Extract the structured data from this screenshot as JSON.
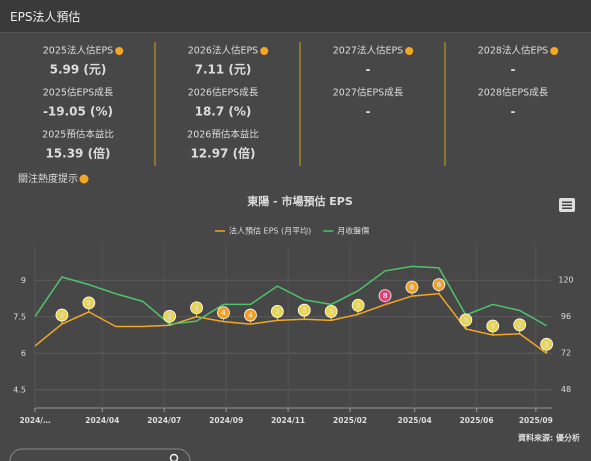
{
  "header": {
    "title": "EPS法人預估"
  },
  "stats": [
    {
      "items": [
        {
          "label": "2025法人估EPS",
          "value": "5.99 (元)",
          "info": true
        },
        {
          "label": "2025估EPS成長",
          "value": "-19.05 (%)",
          "info": false
        },
        {
          "label": "2025預估本益比",
          "value": "15.39 (倍)",
          "info": false
        }
      ]
    },
    {
      "items": [
        {
          "label": "2026法人估EPS",
          "value": "7.11 (元)",
          "info": true
        },
        {
          "label": "2026估EPS成長",
          "value": "18.7 (%)",
          "info": false
        },
        {
          "label": "2026預估本益比",
          "value": "12.97 (倍)",
          "info": false
        }
      ]
    },
    {
      "items": [
        {
          "label": "2027法人估EPS",
          "value": "-",
          "info": true
        },
        {
          "label": "2027估EPS成長",
          "value": "-",
          "info": false
        }
      ]
    },
    {
      "items": [
        {
          "label": "2028法人估EPS",
          "value": "-",
          "info": true
        },
        {
          "label": "2028估EPS成長",
          "value": "-",
          "info": false
        }
      ]
    }
  ],
  "hint": "關注熱度提示",
  "chart_data": {
    "type": "line",
    "title": "東陽 - 市場預估 EPS",
    "x": [
      0,
      1,
      2,
      3,
      4,
      5,
      6,
      7,
      8,
      9,
      10,
      11,
      12,
      13,
      14,
      15,
      16,
      17,
      18,
      19
    ],
    "series": [
      {
        "name": "法人預估 EPS (月平均)",
        "color": "#f5a623",
        "values": [
          6.3,
          7.2,
          7.7,
          7.1,
          7.1,
          7.15,
          7.5,
          7.3,
          7.2,
          7.35,
          7.4,
          7.35,
          7.6,
          8.0,
          8.35,
          8.45,
          7.0,
          6.75,
          6.8,
          6.0
        ],
        "badges": [
          null,
          1,
          3,
          null,
          null,
          2,
          1,
          4,
          4,
          2,
          3,
          3,
          3,
          8,
          6,
          6,
          3,
          3,
          2,
          3
        ]
      },
      {
        "name": "月收盤價",
        "color": "#4fc36a",
        "axis": "y2",
        "values": [
          96,
          122,
          117,
          111,
          106,
          91,
          93,
          104,
          104,
          116,
          107,
          104,
          113,
          126,
          129,
          128,
          97,
          104,
          100,
          90
        ]
      }
    ],
    "xlim": [
      0,
      19.2
    ],
    "xticks": [
      {
        "value": 0,
        "label": "2024/…"
      },
      {
        "value": 2.5,
        "label": "2024/04"
      },
      {
        "value": 4.8,
        "label": "2024/07"
      },
      {
        "value": 7.1,
        "label": "2024/09"
      },
      {
        "value": 9.4,
        "label": "2024/11"
      },
      {
        "value": 11.7,
        "label": "2025/02"
      },
      {
        "value": 14.1,
        "label": "2025/04"
      },
      {
        "value": 16.4,
        "label": "2025/06"
      },
      {
        "value": 18.6,
        "label": "2025/09"
      }
    ],
    "ylim": [
      3.75,
      10.45
    ],
    "yticks": [
      4.5,
      6,
      7.5,
      9
    ],
    "y2lim": [
      36,
      143
    ],
    "y2ticks": [
      48,
      72,
      96,
      120
    ],
    "grid": true,
    "source": "資料來源: 優分析"
  }
}
